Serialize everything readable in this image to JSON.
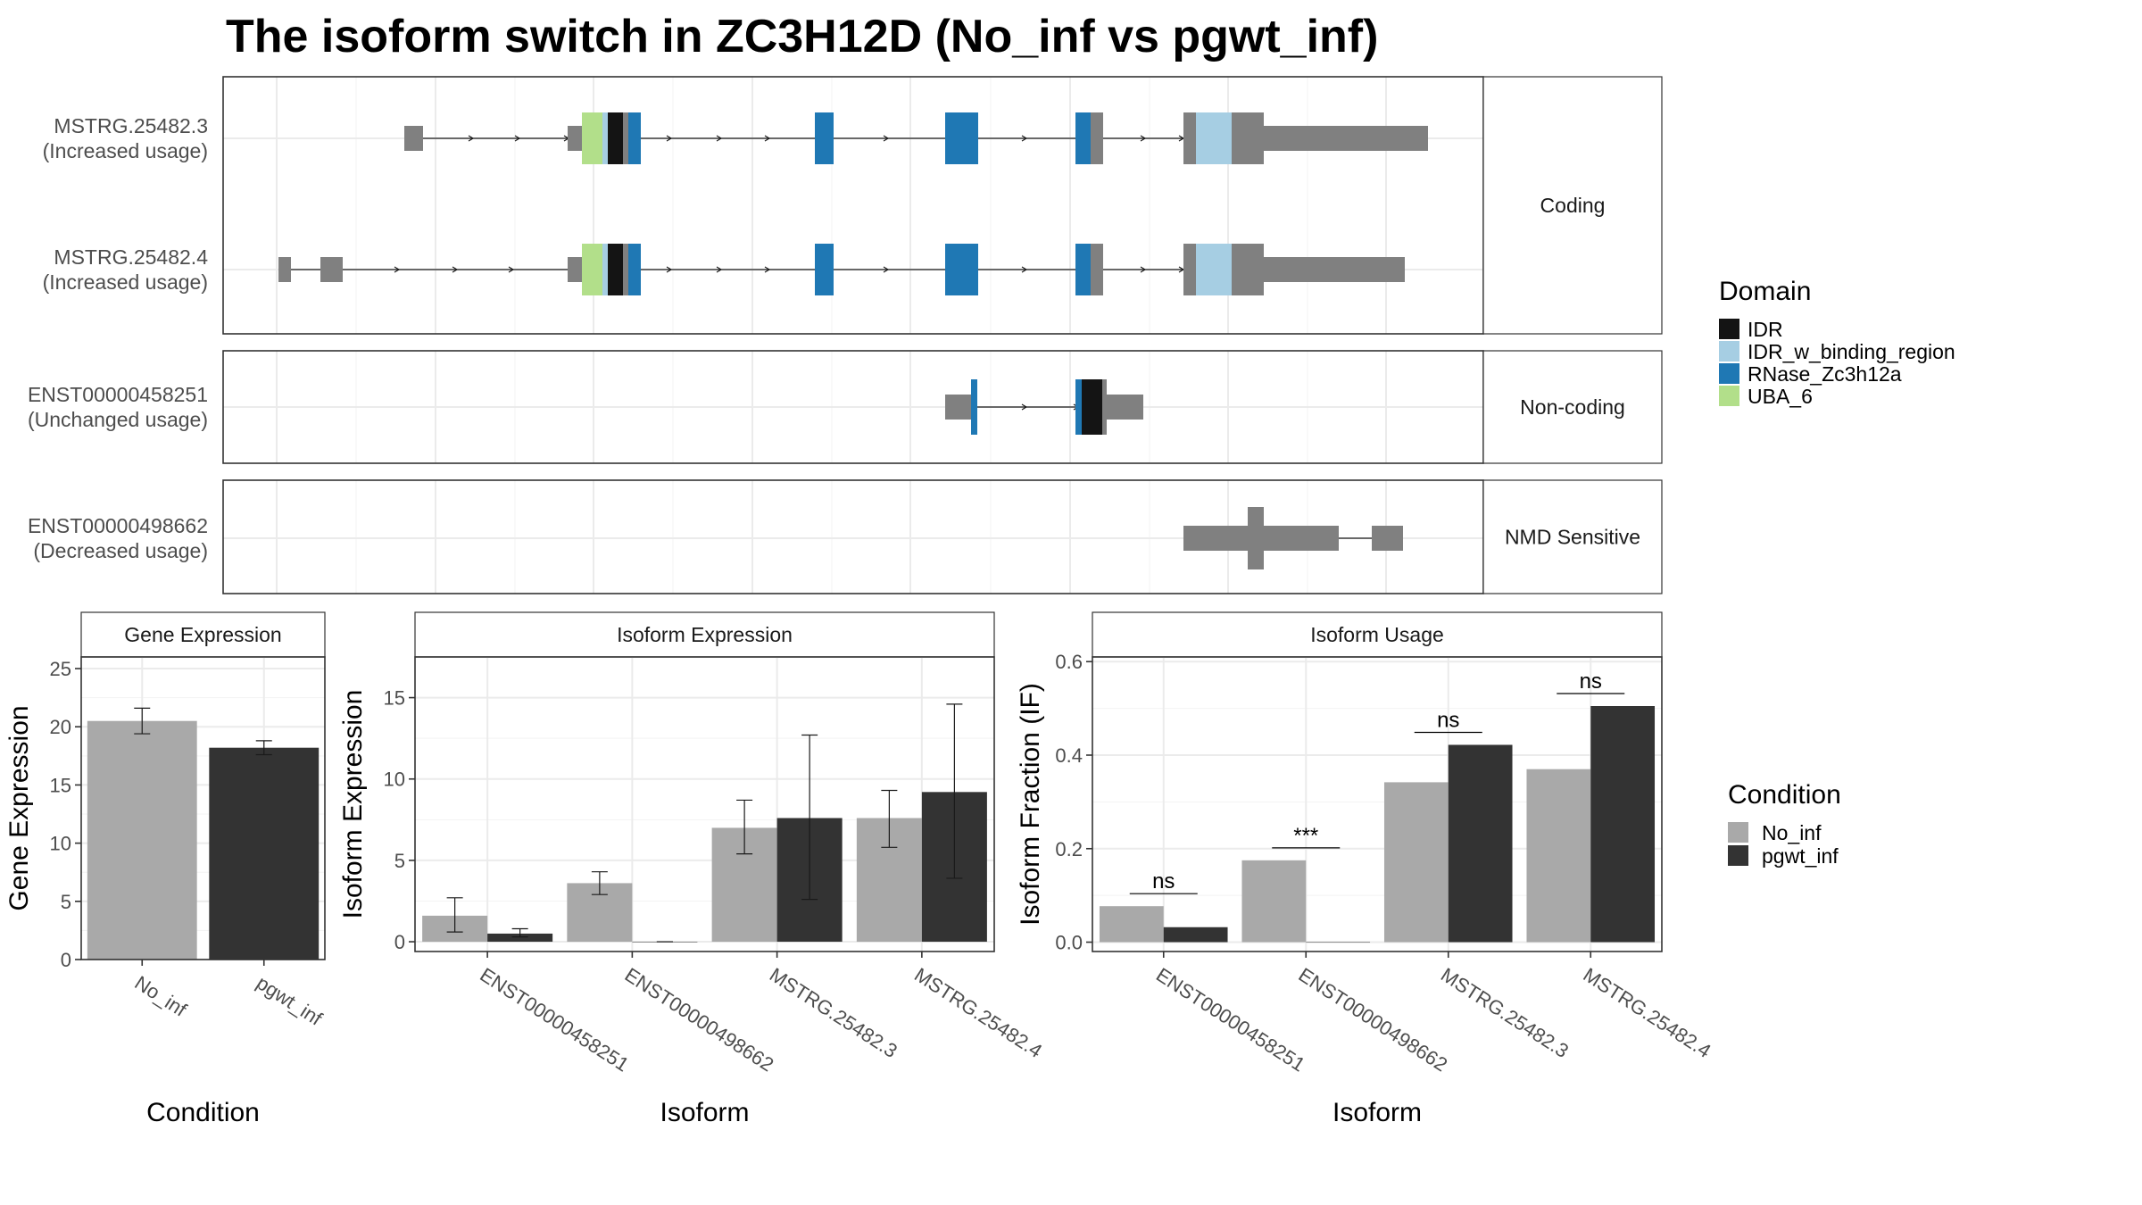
{
  "title": "The isoform switch in ZC3H12D (No_inf vs pgwt_inf)",
  "colors": {
    "IDR": "#141414",
    "IDR_w_binding_region": "#a6cee3",
    "RNase_Zc3h12a": "#1f78b4",
    "UBA_6": "#b2df8a",
    "exon": "#808080",
    "No_inf": "#a9a9a9",
    "pgwt_inf": "#333333"
  },
  "transcripts": {
    "groups": [
      {
        "label": "Coding",
        "rows": [
          {
            "id": "MSTRG.25482.3",
            "usage": "(Increased usage)"
          },
          {
            "id": "MSTRG.25482.4",
            "usage": "(Increased usage)"
          }
        ]
      },
      {
        "label": "Non-coding",
        "rows": [
          {
            "id": "ENST00000458251",
            "usage": "(Unchanged usage)"
          }
        ]
      },
      {
        "label": "NMD Sensitive",
        "rows": [
          {
            "id": "ENST00000498662",
            "usage": "(Decreased usage)"
          }
        ]
      }
    ]
  },
  "legends": {
    "domain": {
      "title": "Domain",
      "items": [
        {
          "label": "IDR",
          "color": "#141414"
        },
        {
          "label": "IDR_w_binding_region",
          "color": "#a6cee3"
        },
        {
          "label": "RNase_Zc3h12a",
          "color": "#1f78b4"
        },
        {
          "label": "UBA_6",
          "color": "#b2df8a"
        }
      ]
    },
    "condition": {
      "title": "Condition",
      "items": [
        {
          "label": "No_inf",
          "color": "#a9a9a9"
        },
        {
          "label": "pgwt_inf",
          "color": "#333333"
        }
      ]
    }
  },
  "chart_data": [
    {
      "type": "bar",
      "title": "Gene Expression",
      "xlabel": "Condition",
      "ylabel": "Gene Expression",
      "ylim": [
        0,
        26
      ],
      "yticks": [
        0,
        5,
        10,
        15,
        20,
        25
      ],
      "categories": [
        "No_inf",
        "pgwt_inf"
      ],
      "values": [
        20.5,
        18.2
      ],
      "errors": [
        [
          19.4,
          21.6
        ],
        [
          17.6,
          18.8
        ]
      ]
    },
    {
      "type": "bar",
      "title": "Isoform Expression",
      "xlabel": "Isoform",
      "ylabel": "Isoform Expression",
      "ylim": [
        -0.6,
        17.5
      ],
      "yticks": [
        0,
        5,
        10,
        15
      ],
      "categories": [
        "ENST00000458251",
        "ENST00000498662",
        "MSTRG.25482.3",
        "MSTRG.25482.4"
      ],
      "series": [
        {
          "name": "No_inf",
          "values": [
            1.6,
            3.6,
            7.0,
            7.6
          ],
          "errors": [
            [
              0.6,
              2.7
            ],
            [
              2.9,
              4.3
            ],
            [
              5.4,
              8.7
            ],
            [
              5.8,
              9.3
            ]
          ]
        },
        {
          "name": "pgwt_inf",
          "values": [
            0.5,
            0.0,
            7.6,
            9.2
          ],
          "errors": [
            [
              0.3,
              0.8
            ],
            [
              0.0,
              0.0
            ],
            [
              2.6,
              12.7
            ],
            [
              3.9,
              14.6
            ]
          ]
        }
      ]
    },
    {
      "type": "bar",
      "title": "Isoform Usage",
      "xlabel": "Isoform",
      "ylabel": "Isoform Fraction (IF)",
      "ylim": [
        -0.02,
        0.61
      ],
      "yticks": [
        0.0,
        0.2,
        0.4,
        0.6
      ],
      "categories": [
        "ENST00000458251",
        "ENST00000498662",
        "MSTRG.25482.3",
        "MSTRG.25482.4"
      ],
      "series": [
        {
          "name": "No_inf",
          "values": [
            0.077,
            0.175,
            0.342,
            0.37
          ]
        },
        {
          "name": "pgwt_inf",
          "values": [
            0.032,
            0.0,
            0.422,
            0.505
          ]
        }
      ],
      "significance": [
        "ns",
        "***",
        "ns",
        "ns"
      ]
    }
  ]
}
